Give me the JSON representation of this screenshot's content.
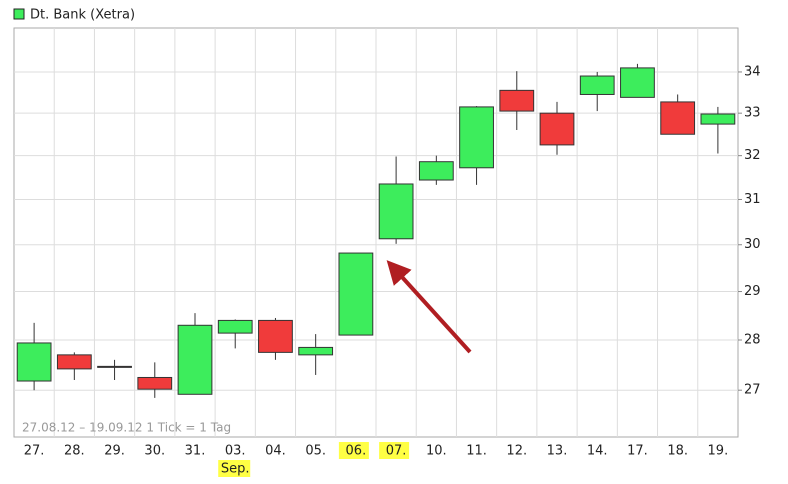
{
  "chart_data": {
    "type": "candlestick",
    "name": "Dt. Bank (Xetra)",
    "annotation": "27.08.12 – 19.09.12   1 Tick = 1 Tag",
    "categories": [
      "27.",
      "28.",
      "29.",
      "30.",
      "31.",
      "03.",
      "04.",
      "05.",
      "06.",
      "07.",
      "10.",
      "11.",
      "12.",
      "13.",
      "14.",
      "17.",
      "18.",
      "19."
    ],
    "month_labels": [
      null,
      null,
      null,
      null,
      null,
      "Sep.",
      null,
      null,
      null,
      null,
      null,
      null,
      null,
      null,
      null,
      null,
      null,
      null
    ],
    "highlight": [
      false,
      false,
      false,
      false,
      false,
      false,
      false,
      false,
      true,
      true,
      false,
      false,
      false,
      false,
      false,
      false,
      false,
      false
    ],
    "open": [
      27.18,
      27.7,
      27.47,
      27.25,
      26.92,
      28.14,
      28.4,
      27.7,
      28.1,
      30.13,
      31.44,
      31.72,
      33.55,
      33.0,
      33.45,
      33.38,
      33.27,
      32.74
    ],
    "high": [
      28.35,
      27.75,
      27.6,
      27.55,
      28.55,
      28.42,
      28.45,
      28.12,
      29.82,
      31.98,
      32.0,
      33.17,
      34.02,
      33.27,
      34.0,
      34.2,
      33.45,
      33.15
    ],
    "low": [
      27.0,
      27.2,
      27.2,
      26.85,
      26.92,
      27.83,
      27.6,
      27.3,
      28.1,
      30.02,
      31.33,
      31.33,
      32.6,
      32.02,
      33.05,
      33.38,
      32.5,
      32.05
    ],
    "close": [
      27.94,
      27.42,
      27.45,
      27.02,
      28.3,
      28.4,
      27.75,
      27.85,
      29.82,
      31.35,
      31.86,
      33.15,
      33.05,
      32.25,
      33.9,
      34.1,
      32.5,
      32.98
    ],
    "up_color": "#3ded5c",
    "down_color": "#f03b3b",
    "log_scale": true,
    "ylim": [
      26.1,
      35.1
    ],
    "yticks": [
      27,
      28,
      29,
      30,
      31,
      32,
      33,
      34
    ],
    "grid": true
  }
}
